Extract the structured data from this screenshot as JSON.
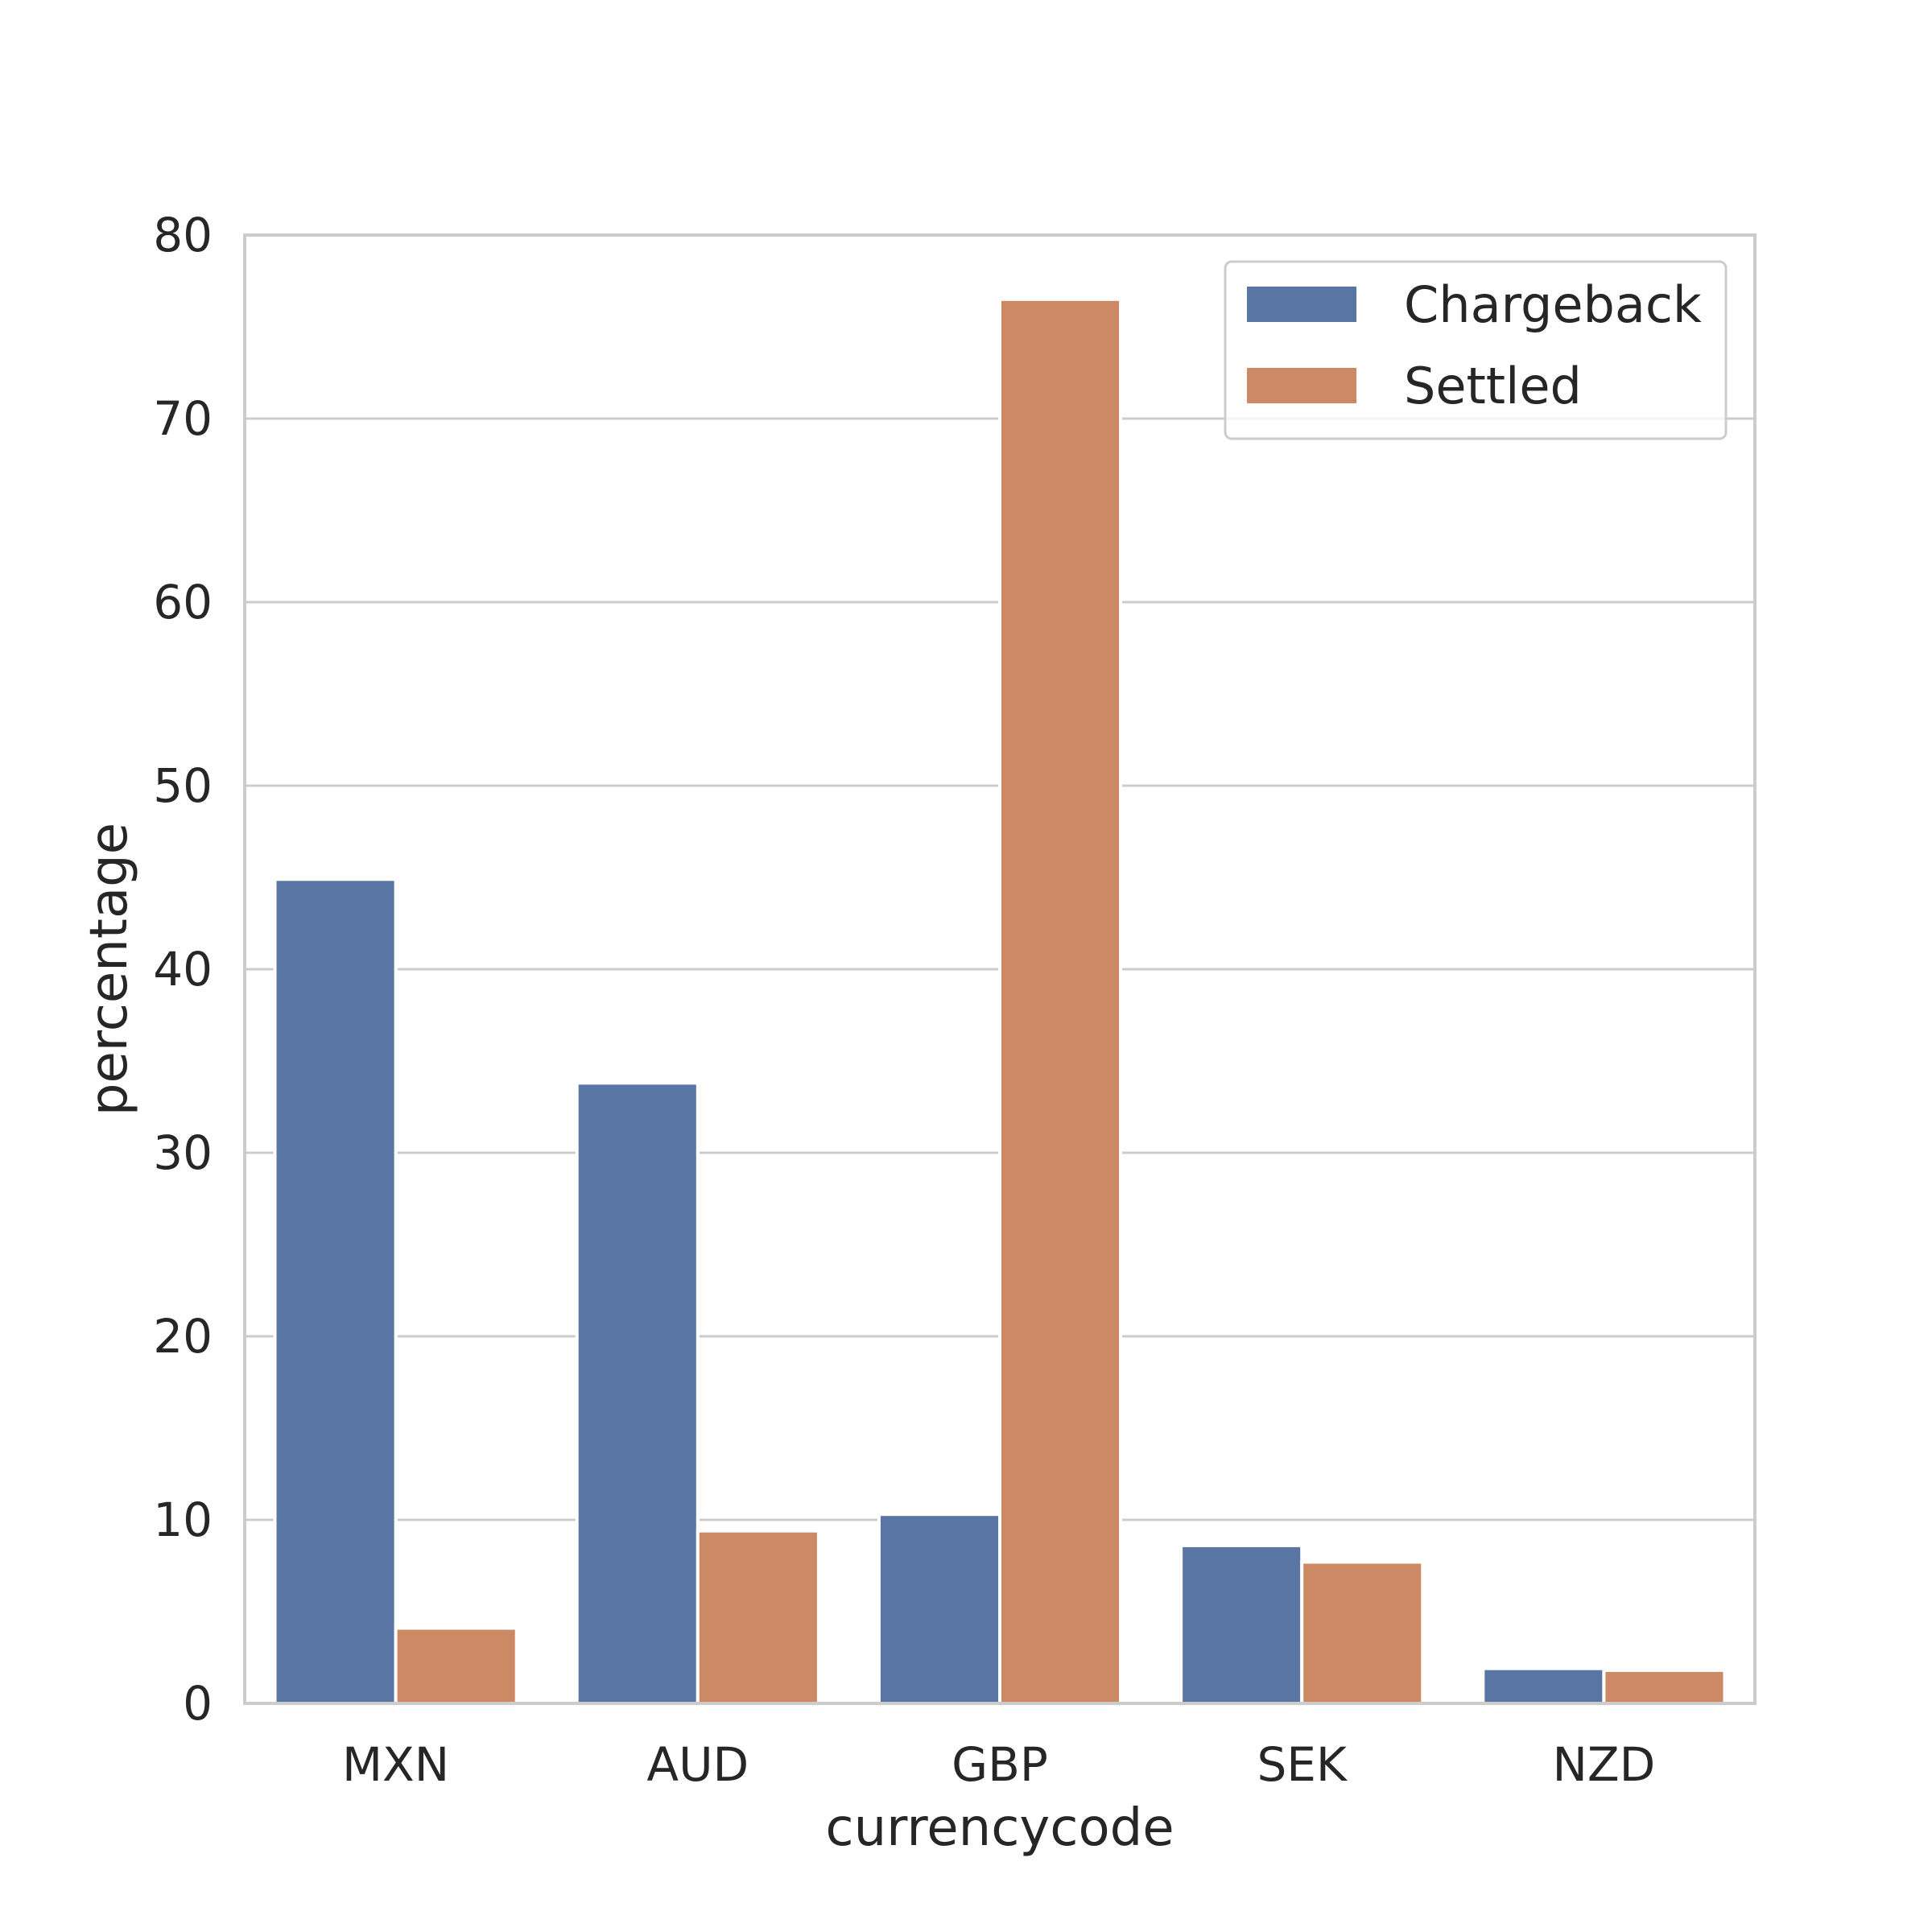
{
  "chart_data": {
    "type": "bar",
    "title": "",
    "xlabel": "currencycode",
    "ylabel": "percentage",
    "categories": [
      "MXN",
      "AUD",
      "GBP",
      "SEK",
      "NZD"
    ],
    "series": [
      {
        "name": "Chargeback",
        "color": "#5975a4",
        "values": [
          44.9,
          33.8,
          10.3,
          8.6,
          1.9
        ]
      },
      {
        "name": "Settled",
        "color": "#cc8963",
        "values": [
          4.1,
          9.4,
          76.5,
          7.7,
          1.8
        ]
      }
    ],
    "ylim": [
      0,
      80
    ],
    "yticks": [
      0,
      10,
      20,
      30,
      40,
      50,
      60,
      70,
      80
    ],
    "grid": "horizontal",
    "legend_position": "top-right"
  }
}
